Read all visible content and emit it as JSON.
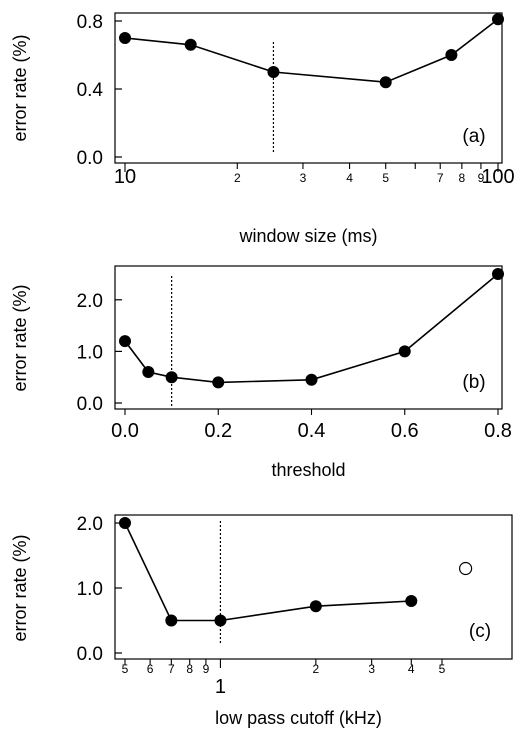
{
  "chart_data": [
    {
      "type": "line",
      "panel_label": "(a)",
      "xlabel": "window size (ms)",
      "ylabel": "error rate (%)",
      "xscale": "log",
      "xlim": [
        10,
        100
      ],
      "ylim": [
        0.0,
        0.8
      ],
      "yticks": [
        "0.0",
        "0.4",
        "0.8"
      ],
      "xticks": [
        {
          "v": 10,
          "t": "10",
          "major": true
        },
        {
          "v": 20,
          "t": "2"
        },
        {
          "v": 30,
          "t": "3"
        },
        {
          "v": 40,
          "t": "4"
        },
        {
          "v": 50,
          "t": "5"
        },
        {
          "v": 60,
          "t": ""
        },
        {
          "v": 70,
          "t": "7"
        },
        {
          "v": 80,
          "t": "8"
        },
        {
          "v": 90,
          "t": "9"
        },
        {
          "v": 100,
          "t": "100",
          "major": true
        }
      ],
      "x": [
        10,
        15,
        25,
        50,
        75,
        100
      ],
      "y": [
        0.7,
        0.66,
        0.5,
        0.44,
        0.6,
        0.81
      ],
      "marker_line_x": 25
    },
    {
      "type": "line",
      "panel_label": "(b)",
      "xlabel": "threshold",
      "ylabel": "error rate (%)",
      "xscale": "linear",
      "xlim": [
        0.0,
        0.8
      ],
      "ylim": [
        0.0,
        2.5
      ],
      "yticks": [
        "0.0",
        "1.0",
        "2.0"
      ],
      "xticks": [
        {
          "v": 0.0,
          "t": "0.0"
        },
        {
          "v": 0.2,
          "t": "0.2"
        },
        {
          "v": 0.4,
          "t": "0.4"
        },
        {
          "v": 0.6,
          "t": "0.6"
        },
        {
          "v": 0.8,
          "t": "0.8"
        }
      ],
      "x": [
        0.0,
        0.05,
        0.1,
        0.2,
        0.4,
        0.6,
        0.8
      ],
      "y": [
        1.2,
        0.6,
        0.5,
        0.4,
        0.45,
        1.0,
        2.5
      ],
      "marker_line_x": 0.1
    },
    {
      "type": "line",
      "panel_label": "(c)",
      "xlabel": "low pass cutoff (kHz)",
      "ylabel": "error rate (%)",
      "xscale": "log",
      "xlim": [
        0.5,
        5
      ],
      "ylim": [
        0.0,
        2.0
      ],
      "yticks": [
        "0.0",
        "1.0",
        "2.0"
      ],
      "xticks": [
        {
          "v": 0.5,
          "t": "5"
        },
        {
          "v": 0.6,
          "t": "6"
        },
        {
          "v": 0.7,
          "t": "7"
        },
        {
          "v": 0.8,
          "t": "8"
        },
        {
          "v": 0.9,
          "t": "9"
        },
        {
          "v": 1,
          "t": "1",
          "major": true
        },
        {
          "v": 2,
          "t": "2"
        },
        {
          "v": 3,
          "t": "3"
        },
        {
          "v": 4,
          "t": "4"
        },
        {
          "v": 5,
          "t": "5"
        }
      ],
      "x": [
        0.5,
        0.7,
        1.0,
        2.0,
        4.0
      ],
      "y": [
        2.0,
        0.5,
        0.5,
        0.72,
        0.8
      ],
      "extra_points": [
        {
          "x": 5.6,
          "y": 1.3,
          "filled": false
        }
      ],
      "marker_line_x": 1.0
    }
  ]
}
